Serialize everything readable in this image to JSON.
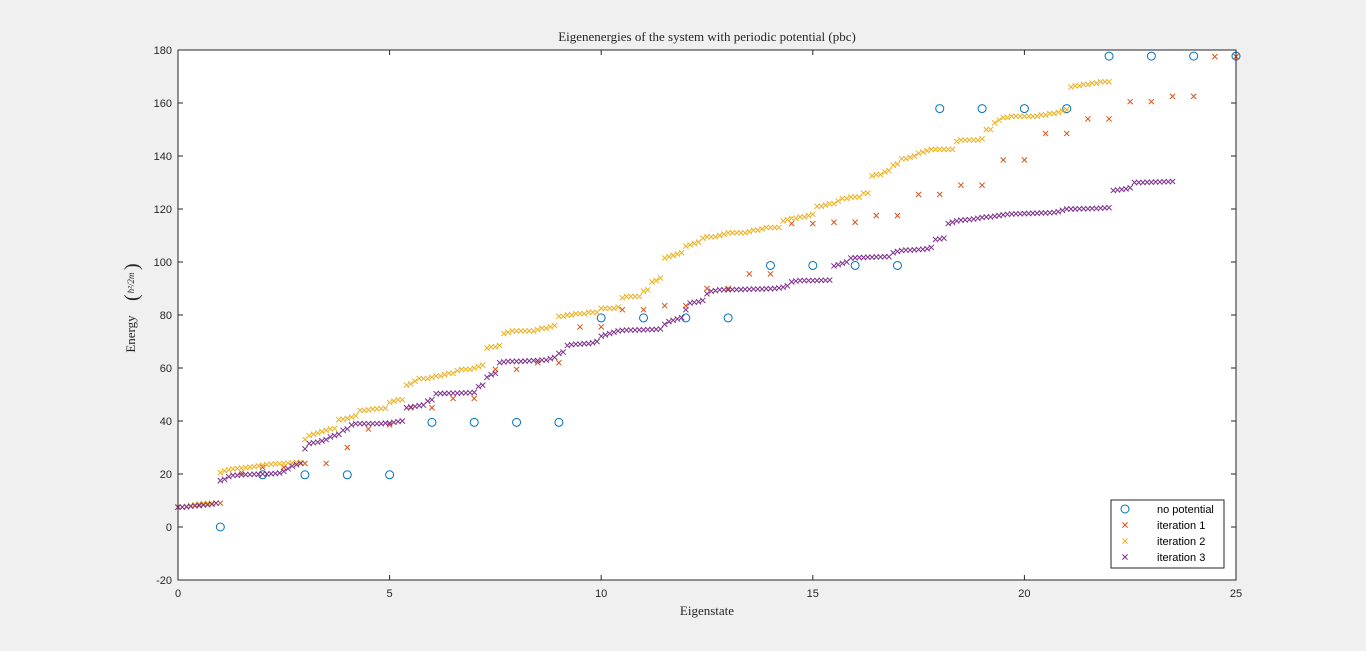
{
  "chart_data": {
    "type": "scatter",
    "title": "Eigenenergies of the system with periodic potential (pbc)",
    "xlabel": "Eigenstate",
    "ylabel_text": "Energy",
    "ylabel_unit": "ħ²/2m",
    "xlim": [
      0,
      25
    ],
    "ylim": [
      -20,
      180
    ],
    "xticks": [
      0,
      5,
      10,
      15,
      20,
      25
    ],
    "yticks": [
      -20,
      0,
      20,
      40,
      60,
      80,
      100,
      120,
      140,
      160,
      180
    ],
    "grid": false,
    "legend_position": "bottom-right",
    "series": [
      {
        "name": "no potential",
        "marker": "circle",
        "color": "#0072BD",
        "x": [
          1,
          2,
          3,
          4,
          5,
          6,
          7,
          8,
          9,
          10,
          11,
          12,
          13,
          14,
          15,
          16,
          17,
          18,
          19,
          20,
          21,
          22,
          23,
          24,
          25
        ],
        "y": [
          0,
          19.7,
          19.7,
          19.7,
          19.7,
          39.5,
          39.5,
          39.5,
          39.5,
          78.9,
          78.9,
          78.9,
          78.9,
          98.7,
          98.7,
          98.7,
          98.7,
          157.9,
          157.9,
          157.9,
          157.9,
          177.7,
          177.7,
          177.7,
          177.7
        ]
      },
      {
        "name": "iteration 1",
        "marker": "x",
        "color": "#D95319",
        "x_start": 0,
        "x_step": 0.5,
        "y": [
          7.5,
          8,
          9,
          20.5,
          22.5,
          22.5,
          24,
          24,
          30,
          37,
          38.5,
          45,
          45,
          48.5,
          48.5,
          59.5,
          59.5,
          62,
          62,
          75.5,
          75.5,
          82,
          82,
          83.5,
          83.5,
          90,
          90,
          95.5,
          95.5,
          114.5,
          114.5,
          115,
          115,
          117.5,
          117.5,
          125.5,
          125.5,
          129,
          129,
          138.5,
          138.5,
          148.5,
          148.5,
          154,
          154,
          160.5,
          160.5,
          162.5,
          162.5,
          177.5,
          177.5
        ]
      },
      {
        "name": "iteration 2",
        "marker": "x",
        "color": "#EDB120",
        "x_start": 0,
        "x_step": 0.1,
        "y": [
          7.5,
          7.5,
          7.8,
          8.1,
          8.4,
          8.7,
          8.9,
          9,
          9,
          9,
          20.5,
          21.2,
          21.6,
          21.9,
          22.1,
          22.2,
          22.4,
          22.6,
          22.8,
          23.1,
          23.3,
          23.5,
          23.7,
          23.8,
          23.9,
          24,
          24.1,
          24.2,
          24.3,
          24.4,
          33,
          34.5,
          35,
          35.5,
          36,
          36.5,
          37,
          37.2,
          40.5,
          40.7,
          41,
          41.5,
          42,
          44,
          44,
          44.2,
          44.5,
          44.6,
          44.7,
          44.8,
          47,
          47.5,
          48,
          48,
          53.5,
          54,
          55,
          56,
          56,
          56,
          56.5,
          57,
          57,
          57.5,
          58,
          58,
          59,
          59.5,
          59.5,
          59.5,
          60,
          60.5,
          61,
          67.5,
          68,
          68,
          68.5,
          73,
          73.5,
          74,
          74,
          74,
          74,
          74,
          74,
          74.5,
          75,
          75,
          75.5,
          76,
          79.5,
          79.5,
          80,
          80,
          80.5,
          80.5,
          80.5,
          81,
          81,
          81,
          82.5,
          82.5,
          82.5,
          82.5,
          83,
          86.5,
          87,
          87,
          87,
          87,
          89,
          89.5,
          92.5,
          93,
          94,
          101.5,
          102,
          102.5,
          103,
          103.5,
          106,
          106.5,
          107,
          107.5,
          109,
          109.5,
          109.5,
          109.5,
          110,
          110.5,
          111,
          111,
          111,
          111,
          111,
          111.5,
          112,
          112,
          112.5,
          113,
          113,
          113,
          113,
          115.5,
          116,
          116.5,
          116.5,
          117,
          117,
          117.5,
          118,
          121,
          121,
          121.5,
          122,
          122,
          123,
          124,
          124,
          124.5,
          124.5,
          124.5,
          126,
          126,
          132.5,
          133,
          133,
          134,
          134.5,
          136.5,
          137,
          139,
          139,
          139.5,
          140,
          141,
          141.5,
          142,
          142.5,
          142.5,
          142.5,
          142.5,
          142.5,
          142.5,
          145.5,
          146,
          146,
          146,
          146,
          146,
          146.5,
          150,
          150,
          152.5,
          153.5,
          154.5,
          154.5,
          155,
          155,
          155,
          155,
          155,
          155,
          155,
          155.5,
          155.5,
          156,
          156,
          156.5,
          157,
          157.5,
          166,
          166.5,
          166.5,
          167,
          167,
          167.5,
          167.5,
          168,
          168,
          168
        ]
      },
      {
        "name": "iteration 3",
        "marker": "x",
        "color": "#7E2F8E",
        "x_start": 0,
        "x_step": 0.1,
        "y": [
          7.5,
          7.5,
          7.6,
          7.8,
          8,
          8.2,
          8.3,
          8.4,
          8.6,
          9,
          17.5,
          18,
          19,
          19.5,
          19.5,
          19.7,
          19.8,
          19.8,
          19.9,
          19.9,
          20,
          20,
          20.1,
          20.2,
          20.4,
          21,
          22,
          23,
          23.5,
          24,
          29.5,
          31.5,
          31.8,
          32,
          32.5,
          33,
          34,
          34.5,
          35,
          36.5,
          37,
          38.5,
          39,
          39,
          39,
          39,
          39,
          39,
          39,
          39.2,
          39.2,
          39.5,
          39.8,
          40,
          45,
          45.3,
          45.5,
          45.8,
          46,
          47.5,
          48,
          50.3,
          50.4,
          50.4,
          50.5,
          50.5,
          50.5,
          50.6,
          50.6,
          50.7,
          50.8,
          53,
          53.5,
          56.5,
          57.5,
          58,
          62,
          62.3,
          62.5,
          62.5,
          62.5,
          62.5,
          62.6,
          62.7,
          62.8,
          62.8,
          63,
          63,
          63.5,
          64,
          65.5,
          66,
          68.5,
          68.8,
          69,
          69,
          69.2,
          69.2,
          69.5,
          70,
          72,
          72.5,
          73,
          73.5,
          74,
          74.2,
          74.3,
          74.3,
          74.3,
          74.4,
          74.4,
          74.5,
          74.5,
          74.6,
          74.7,
          76.5,
          77.5,
          78,
          78.5,
          79,
          82,
          84.5,
          84.8,
          85,
          85.5,
          88,
          89,
          89.2,
          89.5,
          89.5,
          89.5,
          89.6,
          89.6,
          89.6,
          89.7,
          89.7,
          89.8,
          89.8,
          89.8,
          89.9,
          89.9,
          90,
          90.2,
          90.5,
          91,
          92.5,
          92.8,
          93,
          93,
          93,
          93,
          93,
          93.1,
          93.1,
          93.2,
          98.5,
          99,
          99.5,
          100,
          101.5,
          101.6,
          101.7,
          101.7,
          101.8,
          101.8,
          101.9,
          101.9,
          102,
          102,
          103.5,
          104,
          104.3,
          104.5,
          104.5,
          104.6,
          104.7,
          104.8,
          105,
          105.5,
          108.5,
          108.7,
          109,
          114.5,
          115,
          115.5,
          115.8,
          115.9,
          116,
          116.2,
          116.5,
          116.8,
          117,
          117,
          117.3,
          117.5,
          117.8,
          118,
          118.1,
          118.2,
          118.2,
          118.3,
          118.3,
          118.4,
          118.4,
          118.5,
          118.5,
          118.6,
          118.7,
          119,
          119.5,
          120,
          120,
          120,
          120.1,
          120.1,
          120.1,
          120.2,
          120.2,
          120.3,
          120.4,
          120.5,
          127,
          127.2,
          127.4,
          127.6,
          128,
          130,
          130,
          130,
          130.1,
          130.1,
          130.2,
          130.2,
          130.3,
          130.3,
          130.4
        ]
      }
    ]
  }
}
